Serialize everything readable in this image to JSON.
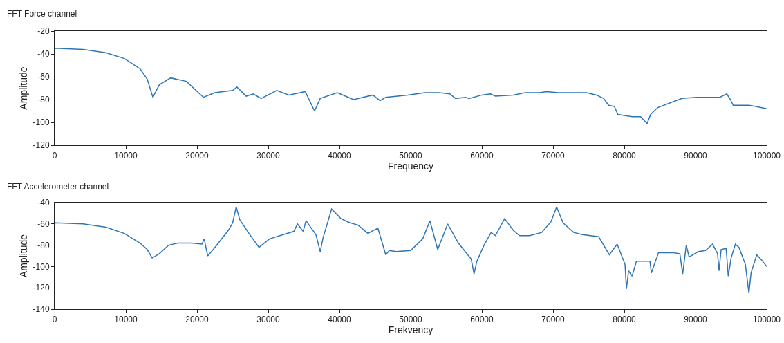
{
  "chart_data": [
    {
      "type": "line",
      "title": "FFT Force channel",
      "xlabel": "Frequency",
      "ylabel": "Amplitude",
      "xlim": [
        0,
        100000
      ],
      "ylim": [
        -120,
        -20
      ],
      "xticks": [
        0,
        10000,
        20000,
        30000,
        40000,
        50000,
        60000,
        70000,
        80000,
        90000,
        100000
      ],
      "yticks": [
        -20,
        -40,
        -60,
        -80,
        -100,
        -120
      ],
      "x": [
        0,
        100,
        4000,
        7200,
        9800,
        12000,
        13000,
        13800,
        14700,
        16300,
        18500,
        20900,
        22500,
        25000,
        25600,
        26900,
        27900,
        29000,
        31200,
        32900,
        35200,
        36500,
        37300,
        39700,
        42000,
        44700,
        45700,
        46500,
        49600,
        52000,
        54000,
        55500,
        56300,
        57700,
        58200,
        60000,
        61200,
        61900,
        64400,
        66100,
        68100,
        69100,
        70700,
        74700,
        76100,
        77100,
        77800,
        78600,
        79100,
        81100,
        82300,
        83200,
        83700,
        84700,
        88100,
        90100,
        93400,
        94400,
        94900,
        95300,
        97500,
        98500,
        100000
      ],
      "series": [
        {
          "color": "#2e75b6",
          "values": [
            -36,
            -35,
            -36,
            -39,
            -44,
            -53,
            -62,
            -78,
            -67,
            -61,
            -64,
            -78,
            -74,
            -72,
            -69,
            -77,
            -75,
            -79,
            -72,
            -76,
            -73,
            -90,
            -79,
            -74,
            -80,
            -76,
            -81,
            -78,
            -76,
            -74,
            -74,
            -75,
            -79,
            -78,
            -79,
            -76,
            -75,
            -77,
            -76,
            -74,
            -74,
            -73,
            -74,
            -74,
            -76,
            -79,
            -85,
            -86,
            -93,
            -95,
            -95,
            -101,
            -93,
            -87,
            -79,
            -78,
            -78,
            -75,
            -80,
            -85,
            -85,
            -86,
            -88
          ]
        }
      ]
    },
    {
      "type": "line",
      "title": "FFT Accelerometer channel",
      "xlabel": "Frekvency",
      "ylabel": "Amplitude",
      "xlim": [
        0,
        100000
      ],
      "ylim": [
        -140,
        -40
      ],
      "xticks": [
        0,
        10000,
        20000,
        30000,
        40000,
        50000,
        60000,
        70000,
        80000,
        90000,
        100000
      ],
      "yticks": [
        -40,
        -60,
        -80,
        -100,
        -120,
        -140
      ],
      "x": [
        0,
        100,
        4000,
        7200,
        9800,
        12000,
        13000,
        13700,
        14700,
        16000,
        17300,
        19200,
        20700,
        21000,
        21500,
        22400,
        24400,
        25000,
        25500,
        26000,
        27300,
        28700,
        30200,
        32100,
        33600,
        34100,
        34900,
        35300,
        36700,
        37300,
        37700,
        38900,
        40200,
        41500,
        42600,
        44000,
        44500,
        45400,
        46500,
        47000,
        48000,
        50000,
        51700,
        52700,
        53800,
        55200,
        56700,
        58500,
        58900,
        59300,
        60300,
        61300,
        61900,
        63200,
        64400,
        65300,
        66700,
        68400,
        69700,
        70500,
        71400,
        72900,
        74100,
        76400,
        77900,
        79000,
        80100,
        80300,
        80600,
        81100,
        81700,
        83600,
        83800,
        84800,
        86800,
        87800,
        88200,
        88700,
        89100,
        90400,
        91400,
        92400,
        93100,
        93300,
        93600,
        94300,
        94600,
        95000,
        95600,
        96100,
        97000,
        97500,
        97800,
        98600,
        99300,
        100000
      ],
      "series": [
        {
          "color": "#2e75b6",
          "values": [
            -60,
            -59,
            -60,
            -63,
            -69,
            -78,
            -84,
            -92,
            -88,
            -80,
            -78,
            -78,
            -79,
            -74,
            -90,
            -83,
            -66,
            -59,
            -44,
            -56,
            -69,
            -82,
            -74,
            -70,
            -67,
            -60,
            -67,
            -57,
            -70,
            -86,
            -73,
            -46,
            -55,
            -59,
            -61,
            -69,
            -67,
            -64,
            -89,
            -85,
            -86,
            -85,
            -74,
            -57,
            -84,
            -60,
            -78,
            -93,
            -107,
            -95,
            -80,
            -68,
            -71,
            -55,
            -66,
            -71,
            -71,
            -68,
            -58,
            -44,
            -59,
            -68,
            -70,
            -72,
            -89,
            -79,
            -98,
            -121,
            -104,
            -109,
            -95,
            -95,
            -106,
            -87,
            -87,
            -88,
            -107,
            -80,
            -91,
            -86,
            -85,
            -79,
            -88,
            -104,
            -84,
            -83,
            -109,
            -92,
            -79,
            -82,
            -98,
            -125,
            -106,
            -89,
            -94,
            -100
          ]
        }
      ]
    }
  ]
}
